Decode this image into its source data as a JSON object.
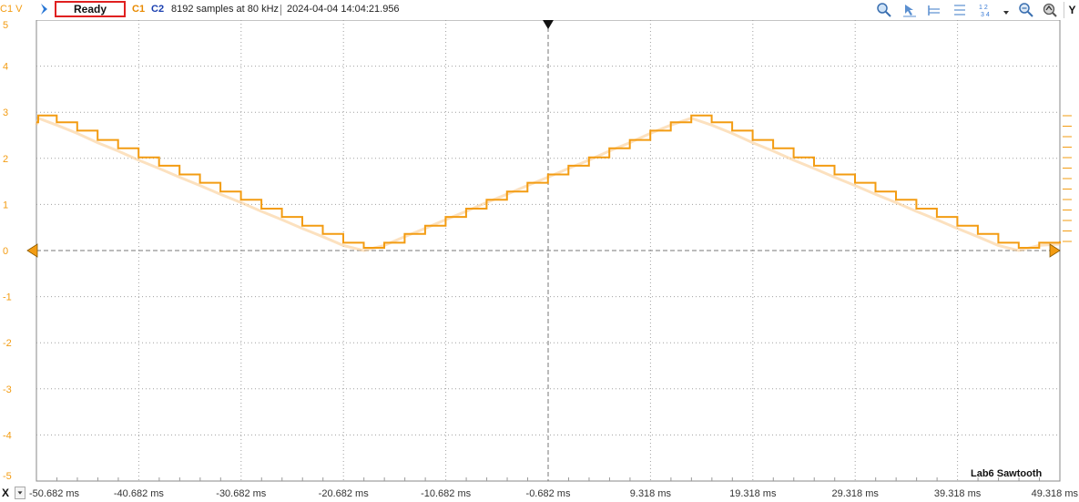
{
  "toolbar": {
    "channel_unit": "C1 V",
    "status": "Ready",
    "channel1": "C1",
    "channel2": "C2",
    "sample_info": "8192 samples at 80 kHz",
    "timestamp": "2024-04-04 14:04:21.956",
    "y_button": "Y",
    "x_button": "X",
    "icons": [
      "zoom-in-icon",
      "cursor-icon",
      "horizontal-cursor-icon",
      "vertical-cursor-icon",
      "cursor-numbers-icon",
      "dropdown-icon",
      "zoom-icon",
      "autoscale-icon"
    ]
  },
  "chart_label": "Lab6 Sawtooth",
  "colors": {
    "trace": "#f39c12",
    "trace_light": "#f9c98a",
    "grid": "#a0a0a0",
    "axis_text_y": "#f39c12",
    "status_border": "#e02020",
    "c2": "#1a3fb0"
  },
  "chart_data": {
    "type": "line",
    "title": "",
    "xlabel": "",
    "ylabel": "",
    "xlim": [
      -50.682,
      49.318
    ],
    "ylim": [
      -5,
      5
    ],
    "grid": true,
    "x_ticks": [
      "-50.682 ms",
      "-40.682 ms",
      "-30.682 ms",
      "-20.682 ms",
      "-10.682 ms",
      "-0.682 ms",
      "9.318 ms",
      "19.318 ms",
      "29.318 ms",
      "39.318 ms",
      "49.318 ms"
    ],
    "y_ticks": [
      "5",
      "4",
      "3",
      "2",
      "1",
      "0",
      "-1",
      "-2",
      "-3",
      "-4",
      "-5"
    ],
    "trigger_x": -0.682,
    "zero_level": 0,
    "series": [
      {
        "x": [
          -50.682,
          -50.5,
          -48.7,
          -46.7,
          -44.7,
          -42.7,
          -40.7,
          -38.7,
          -36.7,
          -34.7,
          -32.7,
          -30.7,
          -28.7,
          -26.7,
          -24.7,
          -22.7,
          -20.7,
          -18.7,
          -16.7,
          -14.7,
          -12.7,
          -10.7,
          -8.7,
          -6.7,
          -4.7,
          -2.7,
          -0.7,
          1.3,
          3.3,
          5.3,
          7.3,
          9.3,
          11.3,
          13.3,
          15.3,
          17.3,
          19.3,
          21.3,
          23.3,
          25.3,
          27.3,
          29.3,
          31.3,
          33.3,
          35.3,
          37.3,
          39.3,
          41.3,
          43.3,
          45.3,
          47.3,
          49.318
        ],
        "y": [
          2.78,
          2.93,
          2.78,
          2.6,
          2.4,
          2.22,
          2.02,
          1.84,
          1.65,
          1.47,
          1.28,
          1.1,
          0.91,
          0.73,
          0.54,
          0.36,
          0.17,
          0.06,
          0.17,
          0.36,
          0.54,
          0.73,
          0.91,
          1.1,
          1.28,
          1.47,
          1.65,
          1.84,
          2.02,
          2.22,
          2.4,
          2.6,
          2.78,
          2.93,
          2.78,
          2.6,
          2.4,
          2.22,
          2.02,
          1.84,
          1.65,
          1.47,
          1.28,
          1.1,
          0.91,
          0.73,
          0.54,
          0.36,
          0.17,
          0.06,
          0.17,
          0.2
        ]
      }
    ]
  }
}
